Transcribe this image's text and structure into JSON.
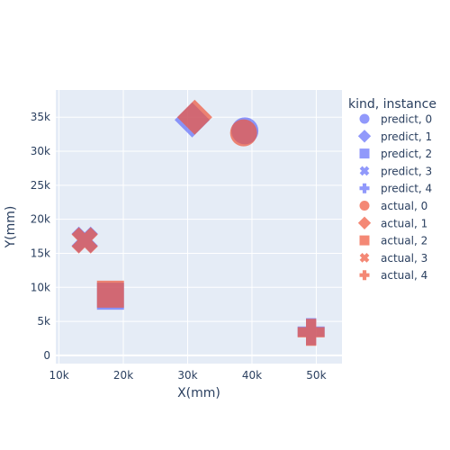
{
  "chart_data": {
    "type": "scatter",
    "title": "",
    "xlabel": "X(mm)",
    "ylabel": "Y(mm)",
    "xlim": [
      9500,
      54000
    ],
    "ylim": [
      -1200,
      39000
    ],
    "x_ticks": [
      10000,
      20000,
      30000,
      40000,
      50000
    ],
    "x_tick_labels": [
      "10k",
      "20k",
      "30k",
      "40k",
      "50k"
    ],
    "y_ticks": [
      0,
      5000,
      10000,
      15000,
      20000,
      25000,
      30000,
      35000
    ],
    "y_tick_labels": [
      "0",
      "5k",
      "10k",
      "15k",
      "20k",
      "25k",
      "30k",
      "35k"
    ],
    "grid": true,
    "legend": {
      "title": "kind, instance",
      "placement": "right"
    },
    "colors": {
      "predict": "#636efa",
      "actual": "#ef553b",
      "plot_bg": "#e5ecf6",
      "grid": "#ffffff",
      "text": "#2a3f5f"
    },
    "series": [
      {
        "name": "predict, 0",
        "kind": "predict",
        "symbol": "circle",
        "x": [
          38900
        ],
        "y": [
          33000
        ]
      },
      {
        "name": "predict, 1",
        "kind": "predict",
        "symbol": "diamond",
        "x": [
          30700
        ],
        "y": [
          34600
        ]
      },
      {
        "name": "predict, 2",
        "kind": "predict",
        "symbol": "square",
        "x": [
          18000
        ],
        "y": [
          8700
        ]
      },
      {
        "name": "predict, 3",
        "kind": "predict",
        "symbol": "x",
        "x": [
          14000
        ],
        "y": [
          17000
        ]
      },
      {
        "name": "predict, 4",
        "kind": "predict",
        "symbol": "cross",
        "x": [
          49200
        ],
        "y": [
          3500
        ]
      },
      {
        "name": "actual, 0",
        "kind": "actual",
        "symbol": "circle",
        "x": [
          38700
        ],
        "y": [
          32700
        ]
      },
      {
        "name": "actual, 1",
        "kind": "actual",
        "symbol": "diamond",
        "x": [
          31100
        ],
        "y": [
          35000
        ]
      },
      {
        "name": "actual, 2",
        "kind": "actual",
        "symbol": "square",
        "x": [
          18000
        ],
        "y": [
          9000
        ]
      },
      {
        "name": "actual, 3",
        "kind": "actual",
        "symbol": "x",
        "x": [
          14000
        ],
        "y": [
          16900
        ]
      },
      {
        "name": "actual, 4",
        "kind": "actual",
        "symbol": "cross",
        "x": [
          49200
        ],
        "y": [
          3400
        ]
      }
    ]
  }
}
